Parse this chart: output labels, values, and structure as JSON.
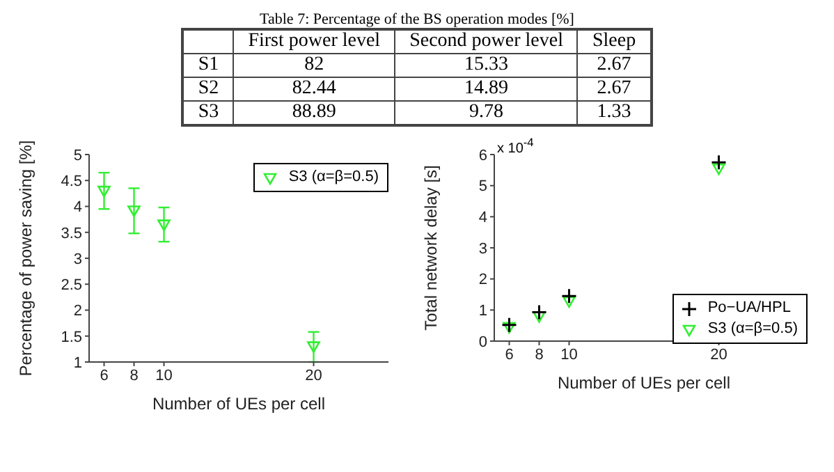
{
  "chart_data": [
    {
      "type": "other",
      "title": "Table 7: Percentage of the BS operation modes [%]",
      "categories": [
        "First power level",
        "Second power level",
        "Sleep"
      ],
      "y_categories": [
        "S1",
        "S2",
        "S3"
      ],
      "cell_labels": [
        [
          "82",
          "15.33",
          "2.67"
        ],
        [
          "82.44",
          "14.89",
          "2.67"
        ],
        [
          "88.89",
          "9.78",
          "1.33"
        ]
      ]
    },
    {
      "type": "scatter",
      "xlabel": "Number of UEs per cell",
      "ylabel": "Percentage of power saving [%]",
      "x": [
        6,
        8,
        10,
        20
      ],
      "xlim": [
        5,
        25
      ],
      "xticks": [
        6,
        8,
        10,
        20
      ],
      "ylim": [
        1,
        5
      ],
      "yticks": [
        1,
        1.5,
        2,
        2.5,
        3,
        3.5,
        4,
        4.5,
        5
      ],
      "legend": "top right",
      "grid": false,
      "series": [
        {
          "name": "S3 (α=β=0.5)",
          "color": "#33ee33",
          "marker": "triangle",
          "values": [
            4.3,
            3.92,
            3.65,
            1.3
          ],
          "errors": [
            [
              3.95,
              4.65
            ],
            [
              3.48,
              4.35
            ],
            [
              3.32,
              3.98
            ],
            [
              1.0,
              1.58
            ]
          ]
        }
      ]
    },
    {
      "type": "scatter",
      "xlabel": "Number of UEs per cell",
      "ylabel": "Total network delay [s]",
      "annotations": [
        "x 10$^{-4}$"
      ],
      "x": [
        6,
        8,
        10,
        20
      ],
      "xlim": [
        5,
        25
      ],
      "xticks": [
        6,
        8,
        10,
        20
      ],
      "ylim": [
        0,
        6
      ],
      "yticks": [
        0,
        1,
        2,
        3,
        4,
        5,
        6
      ],
      "legend": "right",
      "grid": false,
      "series": [
        {
          "name": "Po−UA/HPL",
          "color": "#000000",
          "marker": "cross",
          "values": [
            0.52,
            0.93,
            1.45,
            5.75
          ]
        },
        {
          "name": "S3 (α=β=0.5)",
          "color": "#33ee33",
          "marker": "triangle",
          "values": [
            0.45,
            0.8,
            1.28,
            5.55
          ]
        }
      ]
    }
  ]
}
